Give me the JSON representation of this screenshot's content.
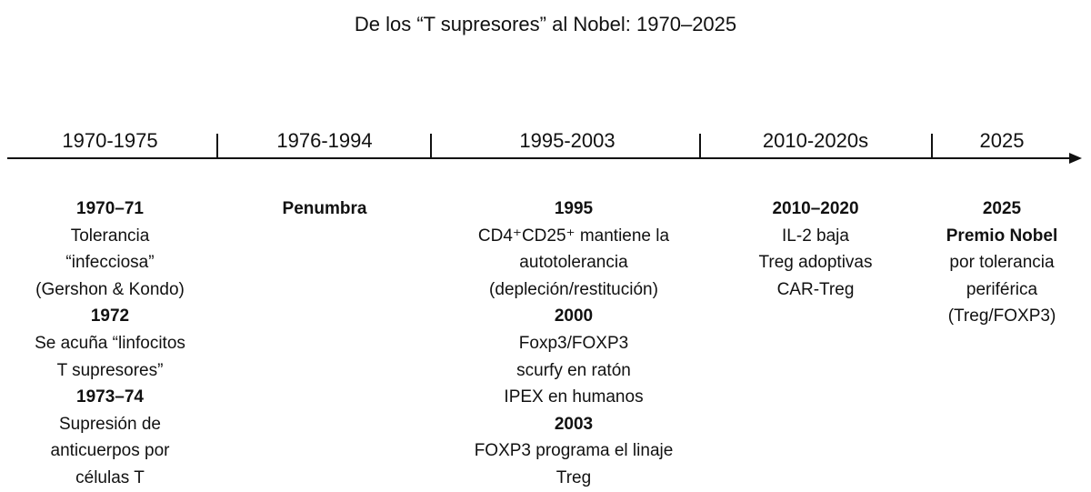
{
  "title": "De los “T supresores” al Nobel: 1970–2025",
  "periods": [
    "1970-1975",
    "1976-1994",
    "1995-2003",
    "2010-2020s",
    "2025"
  ],
  "columns": [
    {
      "lines": [
        {
          "text": "1970–71",
          "bold": true
        },
        {
          "text": "Tolerancia"
        },
        {
          "text": "“infecciosa”"
        },
        {
          "text": "(Gershon & Kondo)"
        },
        {
          "text": "1972",
          "bold": true
        },
        {
          "text": "Se acuña “linfocitos"
        },
        {
          "text": "T supresores”"
        },
        {
          "text": "1973–74",
          "bold": true
        },
        {
          "text": "Supresión de"
        },
        {
          "text": "anticuerpos por"
        },
        {
          "text": "células T"
        }
      ]
    },
    {
      "lines": [
        {
          "text": "Penumbra",
          "bold": true
        }
      ]
    },
    {
      "lines": [
        {
          "text": "1995",
          "bold": true
        },
        {
          "text": "CD4⁺CD25⁺ mantiene la"
        },
        {
          "text": "autotolerancia"
        },
        {
          "text": "(depleción/restitución)"
        },
        {
          "text": "2000",
          "bold": true
        },
        {
          "text": "Foxp3/FOXP3"
        },
        {
          "text": "scurfy en ratón"
        },
        {
          "text": "IPEX en humanos"
        },
        {
          "text": "2003",
          "bold": true
        },
        {
          "text": "FOXP3 programa el linaje"
        },
        {
          "text": "Treg"
        }
      ]
    },
    {
      "lines": [
        {
          "text": "2010–2020",
          "bold": true
        },
        {
          "text": "IL-2 baja"
        },
        {
          "text": "Treg adoptivas"
        },
        {
          "text": "CAR-Treg"
        }
      ]
    },
    {
      "lines": [
        {
          "text": "2025",
          "bold": true
        },
        {
          "text": "Premio Nobel",
          "bold": true
        },
        {
          "text": "por tolerancia"
        },
        {
          "text": "periférica"
        },
        {
          "text": "(Treg/FOXP3)"
        }
      ]
    }
  ]
}
